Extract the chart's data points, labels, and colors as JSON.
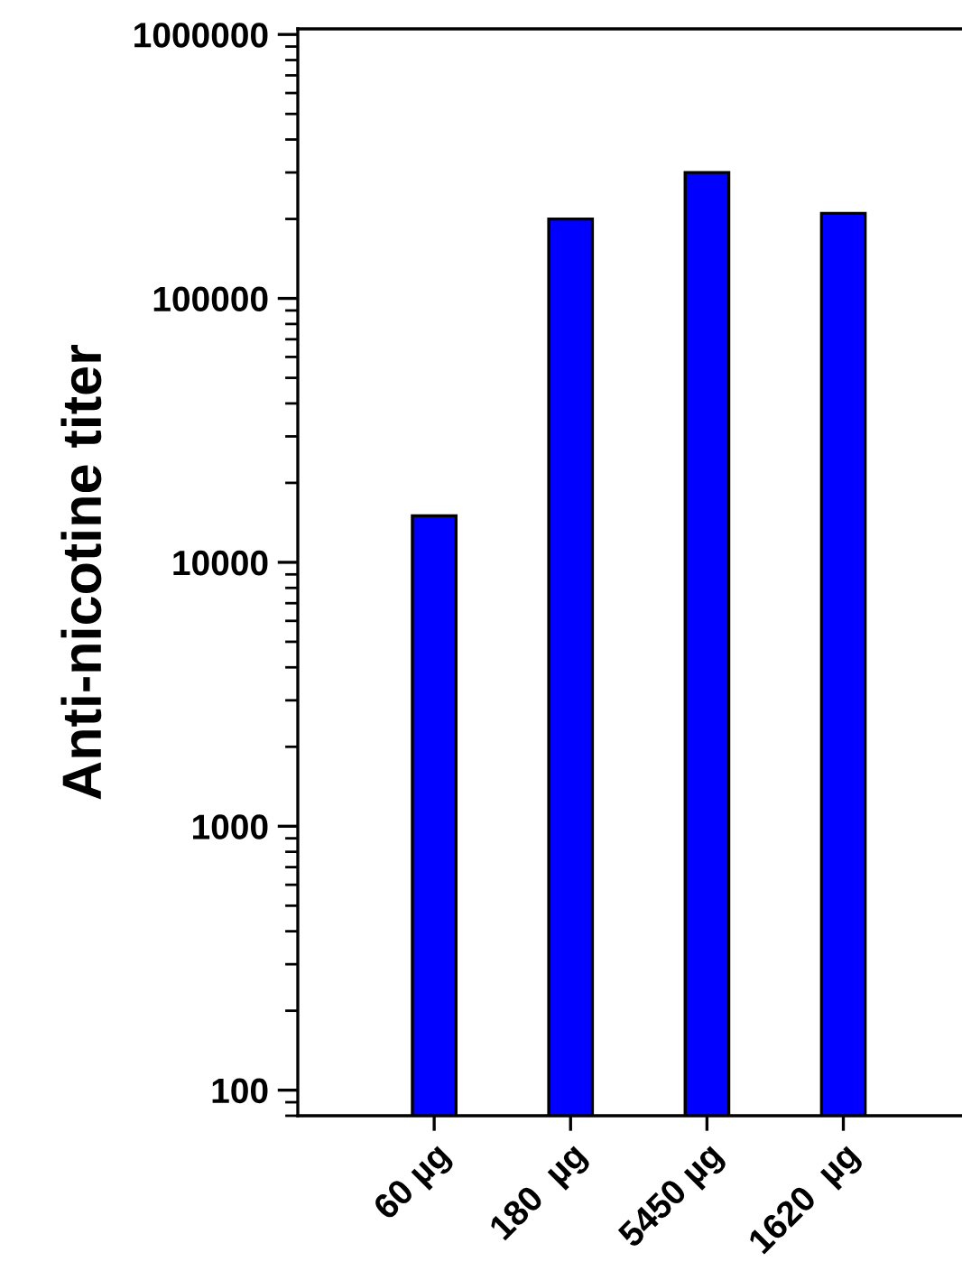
{
  "chart_data": {
    "type": "bar",
    "ylabel": "Anti-nicotine titer",
    "categories": [
      "60 µg",
      "180  µg",
      "5450 µg",
      "1620  µg"
    ],
    "values": [
      15000,
      200000,
      300000,
      210000
    ],
    "color": "#0000ff",
    "log": true,
    "ylim": [
      80,
      1050000
    ],
    "yticks": [
      100,
      1000,
      10000,
      100000,
      1000000
    ],
    "grid": false,
    "legend": false
  }
}
